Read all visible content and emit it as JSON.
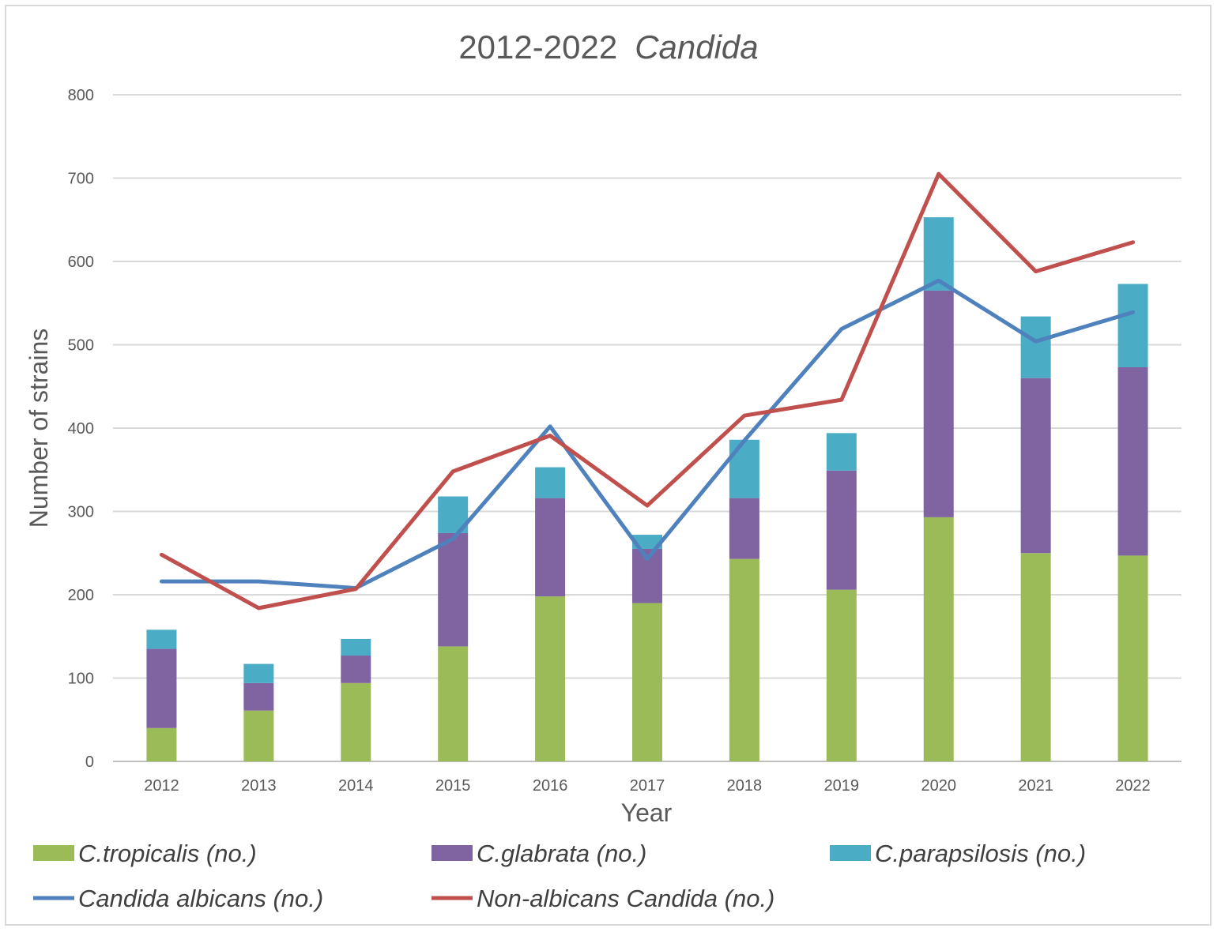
{
  "chart_data": {
    "type": "bar",
    "stacked": true,
    "title_main": "2012-2022",
    "title_italic": "Candida",
    "xlabel": "Year",
    "ylabel": "Number of strains",
    "ylim": [
      0,
      800
    ],
    "yticks": [
      0,
      100,
      200,
      300,
      400,
      500,
      600,
      700,
      800
    ],
    "grid": true,
    "legend_position": "bottom",
    "categories": [
      "2012",
      "2013",
      "2014",
      "2015",
      "2016",
      "2017",
      "2018",
      "2019",
      "2020",
      "2021",
      "2022"
    ],
    "bar_series": [
      {
        "name": "C.tropicalis (no.)",
        "color": "#9bbb59",
        "values": [
          40,
          61,
          94,
          138,
          198,
          190,
          243,
          206,
          293,
          250,
          247
        ]
      },
      {
        "name": "C.glabrata (no.)",
        "color": "#8064a2",
        "values": [
          95,
          33,
          33,
          136,
          118,
          65,
          73,
          143,
          272,
          210,
          226
        ]
      },
      {
        "name": "C.parapsilosis (no.)",
        "color": "#4bacc6",
        "values": [
          23,
          23,
          20,
          44,
          37,
          17,
          70,
          45,
          88,
          74,
          100
        ]
      }
    ],
    "line_series": [
      {
        "name": "Candida albicans (no.)",
        "color": "#4f81bd",
        "values": [
          216,
          216,
          208,
          267,
          402,
          243,
          385,
          519,
          577,
          504,
          539
        ]
      },
      {
        "name": "Non-albicans Candida  (no.)",
        "color": "#c0504d",
        "values": [
          248,
          184,
          207,
          348,
          391,
          307,
          415,
          434,
          705,
          588,
          623
        ]
      }
    ]
  }
}
